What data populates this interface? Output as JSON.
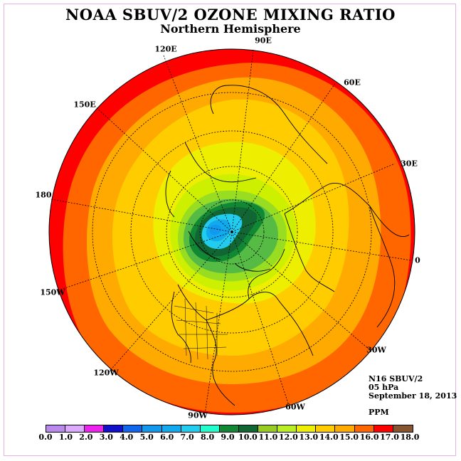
{
  "title": "NOAA SBUV/2 OZONE MIXING RATIO",
  "subtitle": "Northern Hemisphere",
  "longitude_labels": [
    {
      "text": "90E",
      "name": "lon-label-90e"
    },
    {
      "text": "60E",
      "name": "lon-label-60e"
    },
    {
      "text": "30E",
      "name": "lon-label-30e"
    },
    {
      "text": "0",
      "name": "lon-label-0"
    },
    {
      "text": "30W",
      "name": "lon-label-30w"
    },
    {
      "text": "60W",
      "name": "lon-label-60w"
    },
    {
      "text": "90W",
      "name": "lon-label-90w"
    },
    {
      "text": "120W",
      "name": "lon-label-120w"
    },
    {
      "text": "150W",
      "name": "lon-label-150w"
    },
    {
      "text": "180",
      "name": "lon-label-180"
    },
    {
      "text": "150E",
      "name": "lon-label-150e"
    },
    {
      "text": "120E",
      "name": "lon-label-120e"
    }
  ],
  "info": {
    "instrument": "N16 SBUV/2",
    "level": "05 hPa",
    "date": "September 18, 2013",
    "units": "PPM"
  },
  "colorbar": {
    "ticks": [
      "0.0",
      "1.0",
      "2.0",
      "3.0",
      "4.0",
      "5.0",
      "6.0",
      "7.0",
      "8.0",
      "9.0",
      "10.0",
      "11.0",
      "12.0",
      "13.0",
      "14.0",
      "15.0",
      "16.0",
      "17.0",
      "18.0"
    ],
    "colors": [
      "#bb88ee",
      "#ddaaff",
      "#ee22ee",
      "#1111cc",
      "#1166ee",
      "#1199ee",
      "#11aaee",
      "#22ccee",
      "#22ffcc",
      "#118833",
      "#116633",
      "#99cc22",
      "#bbee22",
      "#eeee00",
      "#ffcc00",
      "#ffaa00",
      "#ff6600",
      "#ff0000",
      "#885533"
    ]
  },
  "contour_colors": {
    "17_18": "#ff0000",
    "16_17": "#ff6600",
    "15_16": "#ffaa00",
    "14_15": "#ffcc00",
    "13_14": "#eeee00",
    "12_13": "#ccf000",
    "11_12": "#99dd22",
    "10_11": "#55bb44",
    "9_10": "#118833",
    "8_9": "#116633",
    "7_8": "#22ccee",
    "6_7": "#11aaee",
    "5_6": "#1199ee"
  },
  "fields": {
    "min": 5.5,
    "max": 17.5
  }
}
